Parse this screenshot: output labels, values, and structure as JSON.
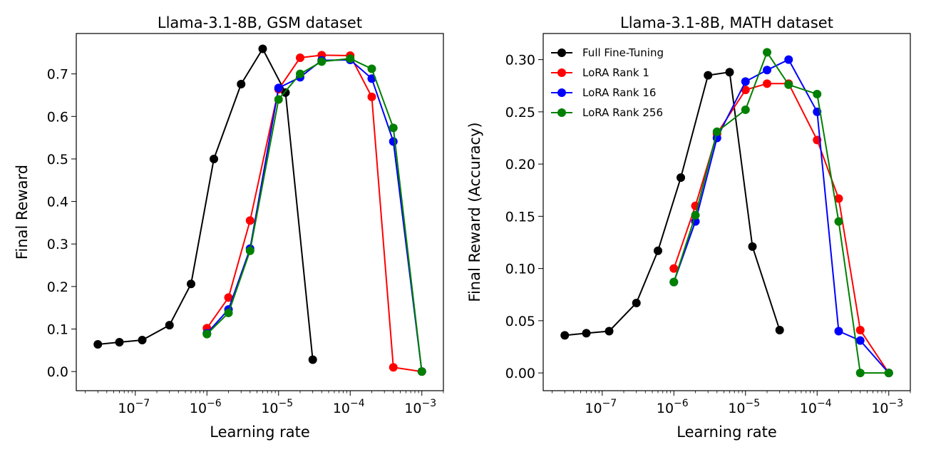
{
  "chart_data": [
    {
      "type": "line",
      "title": "Llama-3.1-8B, GSM dataset",
      "xlabel": "Learning rate",
      "ylabel": "Final Reward",
      "xscale": "log",
      "xlim": [
        1.5e-08,
        0.002
      ],
      "ylim": [
        -0.045,
        0.795
      ],
      "xticks": [
        {
          "value": 1e-07,
          "base": "10",
          "exp": "−7"
        },
        {
          "value": 1e-06,
          "base": "10",
          "exp": "−6"
        },
        {
          "value": 1e-05,
          "base": "10",
          "exp": "−5"
        },
        {
          "value": 0.0001,
          "base": "10",
          "exp": "−4"
        },
        {
          "value": 0.001,
          "base": "10",
          "exp": "−3"
        }
      ],
      "yticks": [
        {
          "value": 0.0,
          "label": "0.0"
        },
        {
          "value": 0.1,
          "label": "0.1"
        },
        {
          "value": 0.2,
          "label": "0.2"
        },
        {
          "value": 0.3,
          "label": "0.3"
        },
        {
          "value": 0.4,
          "label": "0.4"
        },
        {
          "value": 0.5,
          "label": "0.5"
        },
        {
          "value": 0.6,
          "label": "0.6"
        },
        {
          "value": 0.7,
          "label": "0.7"
        }
      ],
      "grid": false,
      "legend": null,
      "series": [
        {
          "name": "Full Fine-Tuning",
          "color": "#000000",
          "x": [
            3e-08,
            6e-08,
            1.25e-07,
            3e-07,
            6e-07,
            1.25e-06,
            3e-06,
            6e-06,
            1.25e-05,
            3e-05
          ],
          "y": [
            0.064,
            0.069,
            0.074,
            0.109,
            0.206,
            0.5,
            0.676,
            0.759,
            0.656,
            0.028
          ]
        },
        {
          "name": "LoRA Rank 1",
          "color": "#ff0000",
          "x": [
            1e-06,
            2e-06,
            4e-06,
            1e-05,
            2e-05,
            4e-05,
            0.0001,
            0.0002,
            0.0004,
            0.001
          ],
          "y": [
            0.102,
            0.174,
            0.355,
            0.664,
            0.738,
            0.744,
            0.743,
            0.646,
            0.01,
            0.0
          ]
        },
        {
          "name": "LoRA Rank 16",
          "color": "#0000ff",
          "x": [
            1e-06,
            2e-06,
            4e-06,
            1e-05,
            2e-05,
            4e-05,
            0.0001,
            0.0002,
            0.0004,
            0.001
          ],
          "y": [
            0.09,
            0.146,
            0.289,
            0.667,
            0.692,
            0.732,
            0.733,
            0.689,
            0.541,
            0.0
          ]
        },
        {
          "name": "LoRA Rank 256",
          "color": "#008000",
          "x": [
            1e-06,
            2e-06,
            4e-06,
            1e-05,
            2e-05,
            4e-05,
            0.0001,
            0.0002,
            0.0004,
            0.001
          ],
          "y": [
            0.088,
            0.138,
            0.284,
            0.64,
            0.7,
            0.729,
            0.736,
            0.712,
            0.573,
            0.0
          ]
        }
      ]
    },
    {
      "type": "line",
      "title": "Llama-3.1-8B, MATH dataset",
      "xlabel": "Learning rate",
      "ylabel": "Final Reward (Accuracy)",
      "xscale": "log",
      "xlim": [
        1.5e-08,
        0.002
      ],
      "ylim": [
        -0.017,
        0.325
      ],
      "xticks": [
        {
          "value": 1e-07,
          "base": "10",
          "exp": "−7"
        },
        {
          "value": 1e-06,
          "base": "10",
          "exp": "−6"
        },
        {
          "value": 1e-05,
          "base": "10",
          "exp": "−5"
        },
        {
          "value": 0.0001,
          "base": "10",
          "exp": "−4"
        },
        {
          "value": 0.001,
          "base": "10",
          "exp": "−3"
        }
      ],
      "yticks": [
        {
          "value": 0.0,
          "label": "0.00"
        },
        {
          "value": 0.05,
          "label": "0.05"
        },
        {
          "value": 0.1,
          "label": "0.10"
        },
        {
          "value": 0.15,
          "label": "0.15"
        },
        {
          "value": 0.2,
          "label": "0.20"
        },
        {
          "value": 0.25,
          "label": "0.25"
        },
        {
          "value": 0.3,
          "label": "0.30"
        }
      ],
      "grid": false,
      "legend": "top-left",
      "series": [
        {
          "name": "Full Fine-Tuning",
          "color": "#000000",
          "x": [
            3e-08,
            6e-08,
            1.25e-07,
            3e-07,
            6e-07,
            1.25e-06,
            3e-06,
            6e-06,
            1.25e-05,
            3e-05
          ],
          "y": [
            0.036,
            0.038,
            0.04,
            0.067,
            0.117,
            0.187,
            0.285,
            0.288,
            0.121,
            0.041
          ]
        },
        {
          "name": "LoRA Rank 1",
          "color": "#ff0000",
          "x": [
            1e-06,
            2e-06,
            4e-06,
            1e-05,
            2e-05,
            4e-05,
            0.0001,
            0.0002,
            0.0004,
            0.001
          ],
          "y": [
            0.1,
            0.16,
            0.229,
            0.271,
            0.277,
            0.277,
            0.223,
            0.167,
            0.041,
            0.0
          ]
        },
        {
          "name": "LoRA Rank 16",
          "color": "#0000ff",
          "x": [
            1e-06,
            2e-06,
            4e-06,
            1e-05,
            2e-05,
            4e-05,
            0.0001,
            0.0002,
            0.0004,
            0.001
          ],
          "y": [
            0.087,
            0.145,
            0.225,
            0.279,
            0.29,
            0.3,
            0.25,
            0.04,
            0.031,
            0.0
          ]
        },
        {
          "name": "LoRA Rank 256",
          "color": "#008000",
          "x": [
            1e-06,
            2e-06,
            4e-06,
            1e-05,
            2e-05,
            4e-05,
            0.0001,
            0.0002,
            0.0004,
            0.001
          ],
          "y": [
            0.087,
            0.151,
            0.231,
            0.252,
            0.307,
            0.276,
            0.267,
            0.145,
            0.0,
            0.0
          ]
        }
      ]
    }
  ]
}
